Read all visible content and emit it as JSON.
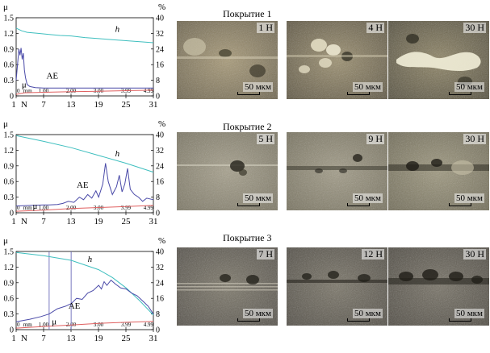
{
  "chart_data": [
    {
      "type": "line",
      "panel": "1",
      "left_axis": {
        "label": "μ",
        "ticks": [
          "0",
          "0.3",
          "0.6",
          "0.9",
          "1.2",
          "1.5"
        ],
        "range": [
          0,
          1.5
        ]
      },
      "right_axis": {
        "label": "%",
        "ticks": [
          "0",
          "8",
          "16",
          "24",
          "32",
          "40"
        ],
        "range": [
          0,
          40
        ]
      },
      "x_mm_ticks": [
        "0",
        "1.00",
        "2.00",
        "3.00",
        "3.99",
        "4.99"
      ],
      "x_mm_label": "mm",
      "x_mm_range": [
        0,
        4.99
      ],
      "x_load_ticks": [
        "1",
        "7",
        "13",
        "19",
        "25",
        "31"
      ],
      "x_load_label": "N",
      "series": [
        {
          "name": "h",
          "color": "#3fbfbf",
          "points": [
            [
              0,
              1.3
            ],
            [
              0.2,
              1.25
            ],
            [
              0.4,
              1.22
            ],
            [
              0.8,
              1.2
            ],
            [
              1.2,
              1.18
            ],
            [
              1.6,
              1.16
            ],
            [
              2.0,
              1.15
            ],
            [
              2.5,
              1.12
            ],
            [
              3.0,
              1.1
            ],
            [
              3.5,
              1.08
            ],
            [
              4.0,
              1.06
            ],
            [
              4.5,
              1.04
            ],
            [
              4.99,
              1.02
            ]
          ]
        },
        {
          "name": "AE",
          "color": "#4a4aa8",
          "points": [
            [
              0,
              0.3
            ],
            [
              0.05,
              0.6
            ],
            [
              0.1,
              0.9
            ],
            [
              0.14,
              0.78
            ],
            [
              0.18,
              0.92
            ],
            [
              0.22,
              0.7
            ],
            [
              0.26,
              0.82
            ],
            [
              0.3,
              0.5
            ],
            [
              0.34,
              0.35
            ],
            [
              0.4,
              0.22
            ],
            [
              0.5,
              0.18
            ],
            [
              0.7,
              0.16
            ],
            [
              1.0,
              0.15
            ],
            [
              2.0,
              0.15
            ],
            [
              3.0,
              0.15
            ],
            [
              4.0,
              0.15
            ],
            [
              4.99,
              0.15
            ]
          ]
        },
        {
          "name": "μ",
          "color": "#e06060",
          "points": [
            [
              0,
              0.03
            ],
            [
              0.3,
              0.06
            ],
            [
              1.0,
              0.07
            ],
            [
              2.0,
              0.08
            ],
            [
              3.0,
              0.09
            ],
            [
              4.0,
              0.1
            ],
            [
              4.99,
              0.11
            ]
          ]
        }
      ],
      "markers": []
    },
    {
      "type": "line",
      "panel": "2",
      "left_axis": {
        "label": "μ",
        "ticks": [
          "0",
          "0.3",
          "0.6",
          "0.9",
          "1.2",
          "1.5"
        ],
        "range": [
          0,
          1.5
        ]
      },
      "right_axis": {
        "label": "%",
        "ticks": [
          "0",
          "8",
          "16",
          "24",
          "32",
          "40"
        ],
        "range": [
          0,
          40
        ]
      },
      "x_mm_ticks": [
        "0",
        "1.00",
        "2.00",
        "3.00",
        "3.99",
        "4.99"
      ],
      "x_mm_label": "mm",
      "x_mm_range": [
        0,
        4.99
      ],
      "x_load_ticks": [
        "1",
        "7",
        "13",
        "19",
        "25",
        "31"
      ],
      "x_load_label": "N",
      "series": [
        {
          "name": "h",
          "color": "#3fbfbf",
          "points": [
            [
              0,
              1.48
            ],
            [
              1.0,
              1.37
            ],
            [
              2.0,
              1.25
            ],
            [
              3.0,
              1.1
            ],
            [
              4.0,
              0.95
            ],
            [
              4.99,
              0.78
            ]
          ]
        },
        {
          "name": "AE",
          "color": "#4a4aa8",
          "points": [
            [
              0,
              0.13
            ],
            [
              0.5,
              0.14
            ],
            [
              1.0,
              0.15
            ],
            [
              1.2,
              0.15
            ],
            [
              1.5,
              0.16
            ],
            [
              1.7,
              0.18
            ],
            [
              1.9,
              0.22
            ],
            [
              2.1,
              0.2
            ],
            [
              2.3,
              0.3
            ],
            [
              2.45,
              0.25
            ],
            [
              2.6,
              0.35
            ],
            [
              2.75,
              0.28
            ],
            [
              2.9,
              0.42
            ],
            [
              3.0,
              0.3
            ],
            [
              3.15,
              0.55
            ],
            [
              3.25,
              0.95
            ],
            [
              3.35,
              0.6
            ],
            [
              3.5,
              0.35
            ],
            [
              3.65,
              0.5
            ],
            [
              3.75,
              0.72
            ],
            [
              3.85,
              0.4
            ],
            [
              3.95,
              0.55
            ],
            [
              4.05,
              0.85
            ],
            [
              4.15,
              0.45
            ],
            [
              4.3,
              0.35
            ],
            [
              4.45,
              0.3
            ],
            [
              4.6,
              0.22
            ],
            [
              4.75,
              0.28
            ],
            [
              4.99,
              0.25
            ]
          ]
        },
        {
          "name": "μ",
          "color": "#e06060",
          "points": [
            [
              0,
              0.03
            ],
            [
              1.0,
              0.05
            ],
            [
              2.0,
              0.08
            ],
            [
              3.0,
              0.1
            ],
            [
              4.0,
              0.12
            ],
            [
              4.99,
              0.14
            ]
          ]
        }
      ],
      "markers": []
    },
    {
      "type": "line",
      "panel": "3",
      "left_axis": {
        "label": "μ",
        "ticks": [
          "0",
          "0.3",
          "0.6",
          "0.9",
          "1.2",
          "1.5"
        ],
        "range": [
          0,
          1.5
        ]
      },
      "right_axis": {
        "label": "%",
        "ticks": [
          "0",
          "8",
          "16",
          "24",
          "32",
          "40"
        ],
        "range": [
          0,
          40
        ]
      },
      "x_mm_ticks": [
        "0",
        "1.00",
        "2.00",
        "3.00",
        "3.99",
        "4.99"
      ],
      "x_mm_label": "mm",
      "x_mm_range": [
        0,
        4.99
      ],
      "x_load_ticks": [
        "1",
        "7",
        "13",
        "19",
        "25",
        "31"
      ],
      "x_load_label": "N",
      "series": [
        {
          "name": "h",
          "color": "#3fbfbf",
          "points": [
            [
              0,
              1.48
            ],
            [
              1.0,
              1.42
            ],
            [
              2.0,
              1.33
            ],
            [
              3.0,
              1.15
            ],
            [
              3.5,
              1.0
            ],
            [
              4.0,
              0.8
            ],
            [
              4.5,
              0.55
            ],
            [
              4.99,
              0.28
            ]
          ]
        },
        {
          "name": "AE",
          "color": "#4a4aa8",
          "points": [
            [
              0,
              0.15
            ],
            [
              0.5,
              0.2
            ],
            [
              0.9,
              0.25
            ],
            [
              1.2,
              0.3
            ],
            [
              1.5,
              0.4
            ],
            [
              1.8,
              0.45
            ],
            [
              2.0,
              0.5
            ],
            [
              2.2,
              0.6
            ],
            [
              2.4,
              0.58
            ],
            [
              2.6,
              0.7
            ],
            [
              2.8,
              0.75
            ],
            [
              3.0,
              0.85
            ],
            [
              3.1,
              0.78
            ],
            [
              3.2,
              0.92
            ],
            [
              3.3,
              0.85
            ],
            [
              3.45,
              0.95
            ],
            [
              3.6,
              0.88
            ],
            [
              3.8,
              0.8
            ],
            [
              4.0,
              0.78
            ],
            [
              4.2,
              0.7
            ],
            [
              4.4,
              0.65
            ],
            [
              4.6,
              0.55
            ],
            [
              4.8,
              0.45
            ],
            [
              4.99,
              0.3
            ]
          ]
        },
        {
          "name": "μ",
          "color": "#e06060",
          "points": [
            [
              0,
              0.03
            ],
            [
              1.0,
              0.06
            ],
            [
              2.0,
              0.09
            ],
            [
              3.0,
              0.12
            ],
            [
              4.0,
              0.14
            ],
            [
              4.99,
              0.16
            ]
          ]
        }
      ],
      "markers": [
        1.2,
        2.0
      ]
    }
  ],
  "coatings": [
    {
      "title": "Покрытие 1",
      "micrographs": [
        {
          "load": "1 Н",
          "scale": "50 мкм"
        },
        {
          "load": "4 Н",
          "scale": "50 мкм"
        },
        {
          "load": "30 Н",
          "scale": "50 мкм"
        }
      ]
    },
    {
      "title": "Покрытие 2",
      "micrographs": [
        {
          "load": "5 Н",
          "scale": "50 мкм"
        },
        {
          "load": "9 Н",
          "scale": "50 мкм"
        },
        {
          "load": "30 Н",
          "scale": "50 мкм"
        }
      ]
    },
    {
      "title": "Покрытие 3",
      "micrographs": [
        {
          "load": "7 Н",
          "scale": "50 мкм"
        },
        {
          "load": "12 Н",
          "scale": "50 мкм"
        },
        {
          "load": "30 Н",
          "scale": "50 мкм"
        }
      ]
    }
  ]
}
